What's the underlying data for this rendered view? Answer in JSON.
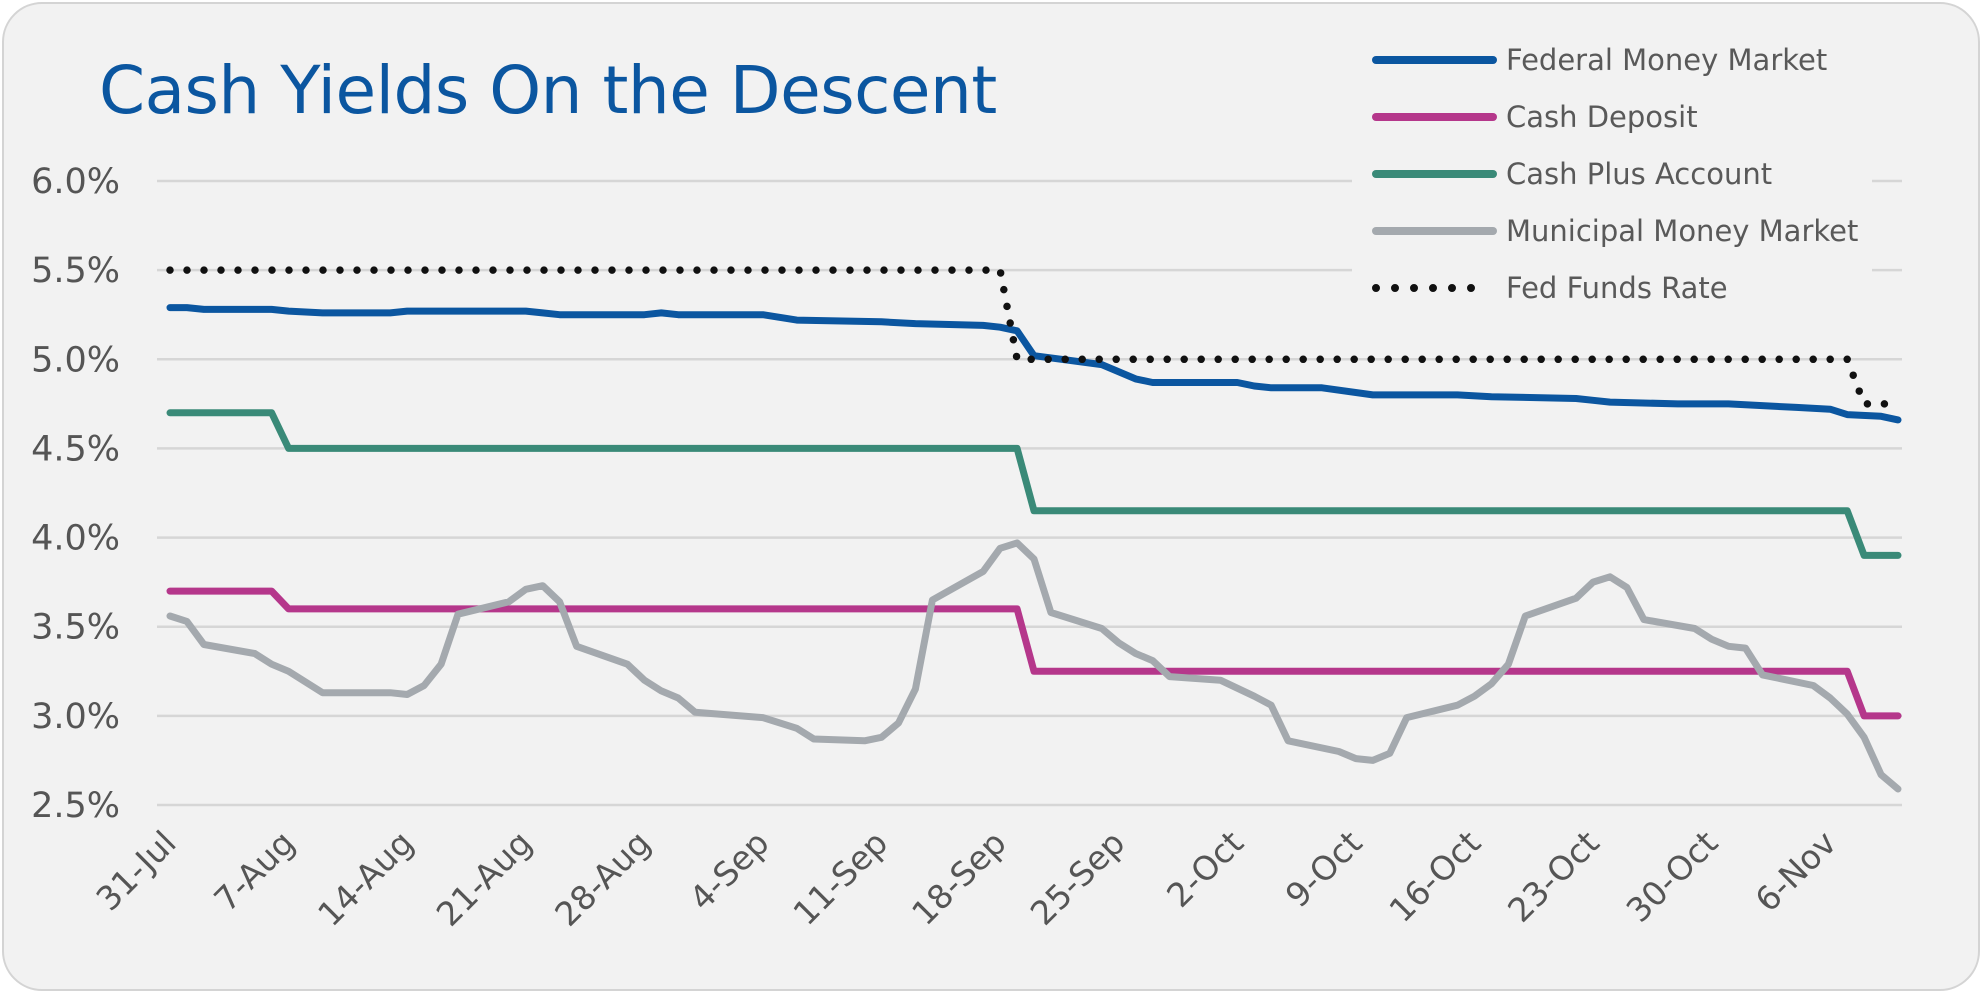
{
  "chart_data": {
    "type": "line",
    "title": "Cash Yields On the Descent",
    "xlabel": "",
    "ylabel": "",
    "ylim": [
      2.5,
      6.0
    ],
    "yticks": [
      "6.0%",
      "5.5%",
      "5.0%",
      "4.5%",
      "4.0%",
      "3.5%",
      "3.0%",
      "2.5%"
    ],
    "ytick_values": [
      6.0,
      5.5,
      5.0,
      4.5,
      4.0,
      3.5,
      3.0,
      2.5
    ],
    "x_range": [
      "31-Jul",
      "10-Nov"
    ],
    "xticks": [
      "31-Jul",
      "7-Aug",
      "14-Aug",
      "21-Aug",
      "28-Aug",
      "4-Sep",
      "11-Sep",
      "18-Sep",
      "25-Sep",
      "2-Oct",
      "9-Oct",
      "16-Oct",
      "23-Oct",
      "30-Oct",
      "6-Nov"
    ],
    "grid": true,
    "legend_position": "top-right",
    "series": [
      {
        "name": "Federal Money Market",
        "color": "#0b56a0",
        "style": "solid",
        "points": [
          [
            "31-Jul",
            5.29
          ],
          [
            "1-Aug",
            5.29
          ],
          [
            "2-Aug",
            5.28
          ],
          [
            "6-Aug",
            5.28
          ],
          [
            "7-Aug",
            5.27
          ],
          [
            "9-Aug",
            5.26
          ],
          [
            "13-Aug",
            5.26
          ],
          [
            "14-Aug",
            5.27
          ],
          [
            "21-Aug",
            5.27
          ],
          [
            "22-Aug",
            5.26
          ],
          [
            "23-Aug",
            5.25
          ],
          [
            "28-Aug",
            5.25
          ],
          [
            "29-Aug",
            5.26
          ],
          [
            "30-Aug",
            5.25
          ],
          [
            "4-Sep",
            5.25
          ],
          [
            "6-Sep",
            5.22
          ],
          [
            "11-Sep",
            5.21
          ],
          [
            "13-Sep",
            5.2
          ],
          [
            "17-Sep",
            5.19
          ],
          [
            "18-Sep",
            5.18
          ],
          [
            "19-Sep",
            5.16
          ],
          [
            "20-Sep",
            5.02
          ],
          [
            "24-Sep",
            4.97
          ],
          [
            "26-Sep",
            4.89
          ],
          [
            "27-Sep",
            4.87
          ],
          [
            "2-Oct",
            4.87
          ],
          [
            "3-Oct",
            4.85
          ],
          [
            "4-Oct",
            4.84
          ],
          [
            "7-Oct",
            4.84
          ],
          [
            "10-Oct",
            4.8
          ],
          [
            "15-Oct",
            4.8
          ],
          [
            "17-Oct",
            4.79
          ],
          [
            "22-Oct",
            4.78
          ],
          [
            "23-Oct",
            4.77
          ],
          [
            "24-Oct",
            4.76
          ],
          [
            "28-Oct",
            4.75
          ],
          [
            "31-Oct",
            4.75
          ],
          [
            "4-Nov",
            4.73
          ],
          [
            "6-Nov",
            4.72
          ],
          [
            "7-Nov",
            4.69
          ],
          [
            "9-Nov",
            4.68
          ],
          [
            "10-Nov",
            4.66
          ]
        ]
      },
      {
        "name": "Cash Deposit",
        "color": "#b5378b",
        "style": "solid",
        "points": [
          [
            "31-Jul",
            3.7
          ],
          [
            "6-Aug",
            3.7
          ],
          [
            "7-Aug",
            3.6
          ],
          [
            "19-Sep",
            3.6
          ],
          [
            "20-Sep",
            3.25
          ],
          [
            "7-Nov",
            3.25
          ],
          [
            "8-Nov",
            3.0
          ],
          [
            "10-Nov",
            3.0
          ]
        ]
      },
      {
        "name": "Cash Plus Account",
        "color": "#3a8a78",
        "style": "solid",
        "points": [
          [
            "31-Jul",
            4.7
          ],
          [
            "6-Aug",
            4.7
          ],
          [
            "7-Aug",
            4.5
          ],
          [
            "19-Sep",
            4.5
          ],
          [
            "20-Sep",
            4.15
          ],
          [
            "7-Nov",
            4.15
          ],
          [
            "8-Nov",
            3.9
          ],
          [
            "10-Nov",
            3.9
          ]
        ]
      },
      {
        "name": "Municipal Money Market",
        "color": "#a4a9ae",
        "style": "solid",
        "points": [
          [
            "31-Jul",
            3.56
          ],
          [
            "1-Aug",
            3.53
          ],
          [
            "2-Aug",
            3.4
          ],
          [
            "5-Aug",
            3.35
          ],
          [
            "6-Aug",
            3.29
          ],
          [
            "7-Aug",
            3.25
          ],
          [
            "9-Aug",
            3.13
          ],
          [
            "13-Aug",
            3.13
          ],
          [
            "14-Aug",
            3.12
          ],
          [
            "15-Aug",
            3.17
          ],
          [
            "16-Aug",
            3.29
          ],
          [
            "17-Aug",
            3.57
          ],
          [
            "20-Aug",
            3.64
          ],
          [
            "21-Aug",
            3.71
          ],
          [
            "22-Aug",
            3.73
          ],
          [
            "23-Aug",
            3.64
          ],
          [
            "24-Aug",
            3.39
          ],
          [
            "27-Aug",
            3.29
          ],
          [
            "28-Aug",
            3.2
          ],
          [
            "29-Aug",
            3.14
          ],
          [
            "30-Aug",
            3.1
          ],
          [
            "31-Aug",
            3.02
          ],
          [
            "4-Sep",
            2.99
          ],
          [
            "6-Sep",
            2.93
          ],
          [
            "7-Sep",
            2.87
          ],
          [
            "10-Sep",
            2.86
          ],
          [
            "11-Sep",
            2.88
          ],
          [
            "12-Sep",
            2.96
          ],
          [
            "13-Sep",
            3.15
          ],
          [
            "14-Sep",
            3.65
          ],
          [
            "17-Sep",
            3.81
          ],
          [
            "18-Sep",
            3.94
          ],
          [
            "19-Sep",
            3.97
          ],
          [
            "20-Sep",
            3.88
          ],
          [
            "21-Sep",
            3.58
          ],
          [
            "24-Sep",
            3.49
          ],
          [
            "25-Sep",
            3.41
          ],
          [
            "26-Sep",
            3.35
          ],
          [
            "27-Sep",
            3.31
          ],
          [
            "28-Sep",
            3.22
          ],
          [
            "1-Oct",
            3.2
          ],
          [
            "3-Oct",
            3.11
          ],
          [
            "4-Oct",
            3.06
          ],
          [
            "5-Oct",
            2.86
          ],
          [
            "8-Oct",
            2.8
          ],
          [
            "9-Oct",
            2.76
          ],
          [
            "10-Oct",
            2.75
          ],
          [
            "11-Oct",
            2.79
          ],
          [
            "12-Oct",
            2.99
          ],
          [
            "15-Oct",
            3.06
          ],
          [
            "16-Oct",
            3.11
          ],
          [
            "17-Oct",
            3.18
          ],
          [
            "18-Oct",
            3.29
          ],
          [
            "19-Oct",
            3.56
          ],
          [
            "22-Oct",
            3.66
          ],
          [
            "23-Oct",
            3.75
          ],
          [
            "24-Oct",
            3.78
          ],
          [
            "25-Oct",
            3.72
          ],
          [
            "26-Oct",
            3.54
          ],
          [
            "29-Oct",
            3.49
          ],
          [
            "30-Oct",
            3.43
          ],
          [
            "31-Oct",
            3.39
          ],
          [
            "1-Nov",
            3.38
          ],
          [
            "2-Nov",
            3.23
          ],
          [
            "5-Nov",
            3.17
          ],
          [
            "6-Nov",
            3.1
          ],
          [
            "7-Nov",
            3.01
          ],
          [
            "8-Nov",
            2.88
          ],
          [
            "9-Nov",
            2.67
          ],
          [
            "10-Nov",
            2.59
          ]
        ]
      },
      {
        "name": "Fed Funds Rate",
        "color": "#111111",
        "style": "dotted",
        "points": [
          [
            "31-Jul",
            5.5
          ],
          [
            "18-Sep",
            5.5
          ],
          [
            "19-Sep",
            5.0
          ],
          [
            "7-Nov",
            5.0
          ],
          [
            "8-Nov",
            4.75
          ],
          [
            "10-Nov",
            4.75
          ]
        ]
      }
    ]
  }
}
